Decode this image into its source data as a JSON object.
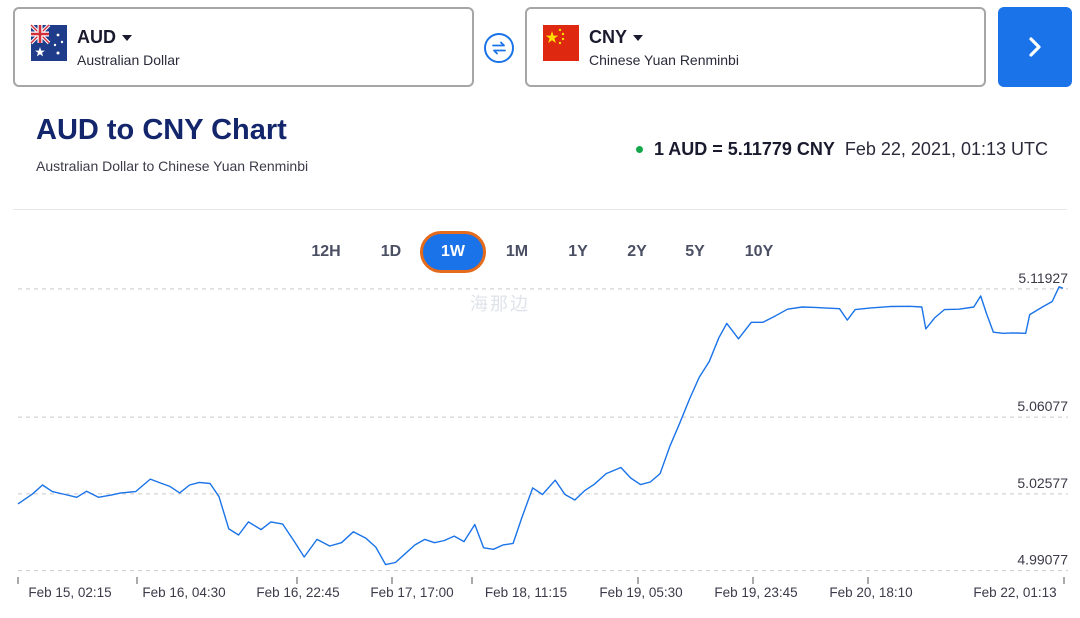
{
  "converter": {
    "from": {
      "code": "AUD",
      "name": "Australian Dollar",
      "flag_icon": "australia-flag-icon"
    },
    "to": {
      "code": "CNY",
      "name": "Chinese Yuan Renminbi",
      "flag_icon": "china-flag-icon"
    },
    "swap_icon": "swap-arrows-icon",
    "go_icon": "chevron-right-icon",
    "accent_color": "#1a73e8"
  },
  "header": {
    "title": "AUD to CNY Chart",
    "subtitle": "Australian Dollar to Chinese Yuan Renminbi",
    "rate": "1 AUD = 5.11779 CNY",
    "timestamp": "Feb 22, 2021, 01:13 UTC",
    "live_color": "#15a84a"
  },
  "ranges": [
    {
      "label": "12H",
      "active": false
    },
    {
      "label": "1D",
      "active": false
    },
    {
      "label": "1W",
      "active": true
    },
    {
      "label": "1M",
      "active": false
    },
    {
      "label": "1Y",
      "active": false
    },
    {
      "label": "2Y",
      "active": false
    },
    {
      "label": "5Y",
      "active": false
    },
    {
      "label": "10Y",
      "active": false
    }
  ],
  "watermark": "海那边",
  "chart_data": {
    "type": "line",
    "title": "",
    "xlabel": "",
    "ylabel": "",
    "ylim": [
      4.9865,
      5.1233
    ],
    "y_ticks": [
      "5.11927",
      "5.06077",
      "5.02577",
      "4.99077"
    ],
    "x_ticks": [
      "Feb 15, 02:15",
      "Feb 16, 04:30",
      "Feb 16, 22:45",
      "Feb 17, 17:00",
      "Feb 18, 11:15",
      "Feb 19, 05:30",
      "Feb 19, 23:45",
      "Feb 20, 18:10",
      "Feb 22, 01:13"
    ],
    "grid": "horizontal dashed",
    "legend": "none",
    "line_color": "#1a73e8",
    "series": [
      {
        "points": [
          [
            0,
            5.0212
          ],
          [
            1.5,
            5.0258
          ],
          [
            2.5,
            5.0298
          ],
          [
            3.5,
            5.0268
          ],
          [
            4.8,
            5.0255
          ],
          [
            6,
            5.0242
          ],
          [
            7,
            5.027
          ],
          [
            8.2,
            5.0242
          ],
          [
            9.5,
            5.0252
          ],
          [
            10.5,
            5.0262
          ],
          [
            12,
            5.0268
          ],
          [
            13.5,
            5.0325
          ],
          [
            14.5,
            5.0308
          ],
          [
            15.5,
            5.0292
          ],
          [
            16.5,
            5.0262
          ],
          [
            17.5,
            5.0298
          ],
          [
            18.5,
            5.031
          ],
          [
            19.6,
            5.0305
          ],
          [
            20.5,
            5.0245
          ],
          [
            21.5,
            5.0098
          ],
          [
            22.5,
            5.007
          ],
          [
            23.5,
            5.013
          ],
          [
            24.8,
            5.0095
          ],
          [
            25.8,
            5.013
          ],
          [
            27,
            5.012
          ],
          [
            28.2,
            5.004
          ],
          [
            29.2,
            4.997
          ],
          [
            30.5,
            5.005
          ],
          [
            31.8,
            5.002
          ],
          [
            33,
            5.0035
          ],
          [
            34.2,
            5.0085
          ],
          [
            35.5,
            5.0055
          ],
          [
            36.5,
            5.0015
          ],
          [
            37.5,
            4.9935
          ],
          [
            38.5,
            4.9945
          ],
          [
            39.5,
            4.9985
          ],
          [
            40.5,
            5.0025
          ],
          [
            41.5,
            5.005
          ],
          [
            42.5,
            5.0035
          ],
          [
            43.5,
            5.0045
          ],
          [
            44.5,
            5.0065
          ],
          [
            45.5,
            5.004
          ],
          [
            46.6,
            5.0118
          ],
          [
            47.5,
            5.0012
          ],
          [
            48.5,
            5.0005
          ],
          [
            49.5,
            5.0025
          ],
          [
            50.5,
            5.0032
          ],
          [
            51.4,
            5.015
          ],
          [
            52.5,
            5.0285
          ],
          [
            53.5,
            5.0255
          ],
          [
            54.8,
            5.032
          ],
          [
            55.8,
            5.0255
          ],
          [
            56.8,
            5.023
          ],
          [
            57.8,
            5.0272
          ],
          [
            58.8,
            5.0302
          ],
          [
            60,
            5.035
          ],
          [
            61.5,
            5.0378
          ],
          [
            62.5,
            5.033
          ],
          [
            63.5,
            5.03
          ],
          [
            64.5,
            5.0312
          ],
          [
            65.5,
            5.035
          ],
          [
            66.5,
            5.0475
          ],
          [
            67.5,
            5.058
          ],
          [
            68.5,
            5.069
          ],
          [
            69.5,
            5.079
          ],
          [
            70.5,
            5.086
          ],
          [
            71.5,
            5.097
          ],
          [
            72.3,
            5.1035
          ],
          [
            73.5,
            5.0965
          ],
          [
            74.8,
            5.104
          ],
          [
            76,
            5.104
          ],
          [
            77.3,
            5.107
          ],
          [
            78.5,
            5.11
          ],
          [
            80,
            5.111
          ],
          [
            81.3,
            5.1108
          ],
          [
            82.5,
            5.1105
          ],
          [
            83.8,
            5.1102
          ],
          [
            84.6,
            5.105
          ],
          [
            85.4,
            5.1098
          ],
          [
            87,
            5.1106
          ],
          [
            89,
            5.1112
          ],
          [
            91,
            5.1113
          ],
          [
            92.2,
            5.111
          ],
          [
            92.6,
            5.101
          ],
          [
            93.5,
            5.106
          ],
          [
            94.5,
            5.1098
          ],
          [
            96,
            5.11
          ],
          [
            97.5,
            5.111
          ],
          [
            98.2,
            5.116
          ],
          [
            98.8,
            5.108
          ],
          [
            99.5,
            5.0995
          ],
          [
            100.5,
            5.099
          ],
          [
            101.5,
            5.0992
          ],
          [
            102.8,
            5.099
          ],
          [
            103.2,
            5.1075
          ],
          [
            104.5,
            5.111
          ],
          [
            105.5,
            5.1135
          ],
          [
            106.2,
            5.1202
          ],
          [
            106.6,
            5.1195
          ]
        ]
      }
    ]
  }
}
